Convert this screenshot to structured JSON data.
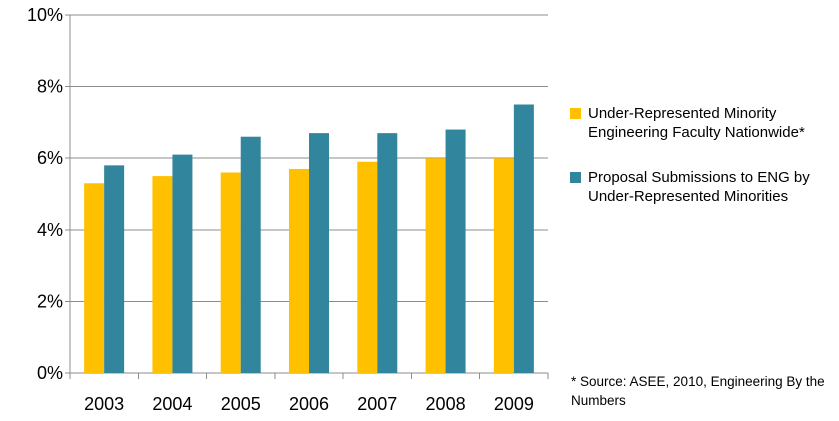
{
  "chart_data": {
    "type": "bar",
    "categories": [
      "2003",
      "2004",
      "2005",
      "2006",
      "2007",
      "2008",
      "2009"
    ],
    "series": [
      {
        "name": "Under-Represented Minority Engineering Faculty Nationwide*",
        "color": "#FFC000",
        "values": [
          5.3,
          5.5,
          5.6,
          5.7,
          5.9,
          6.0,
          6.0
        ]
      },
      {
        "name": "Proposal Submissions to ENG by Under-Represented Minorities",
        "color": "#31859C",
        "values": [
          5.8,
          6.1,
          6.6,
          6.7,
          6.7,
          6.8,
          7.5
        ]
      }
    ],
    "y_ticks": [
      "0%",
      "2%",
      "4%",
      "6%",
      "8%",
      "10%"
    ],
    "ylim": [
      0,
      10
    ],
    "y_unit": "%",
    "grid": true,
    "legend_position": "right",
    "annotation": "* Source: ASEE, 2010, Engineering By the Numbers"
  }
}
